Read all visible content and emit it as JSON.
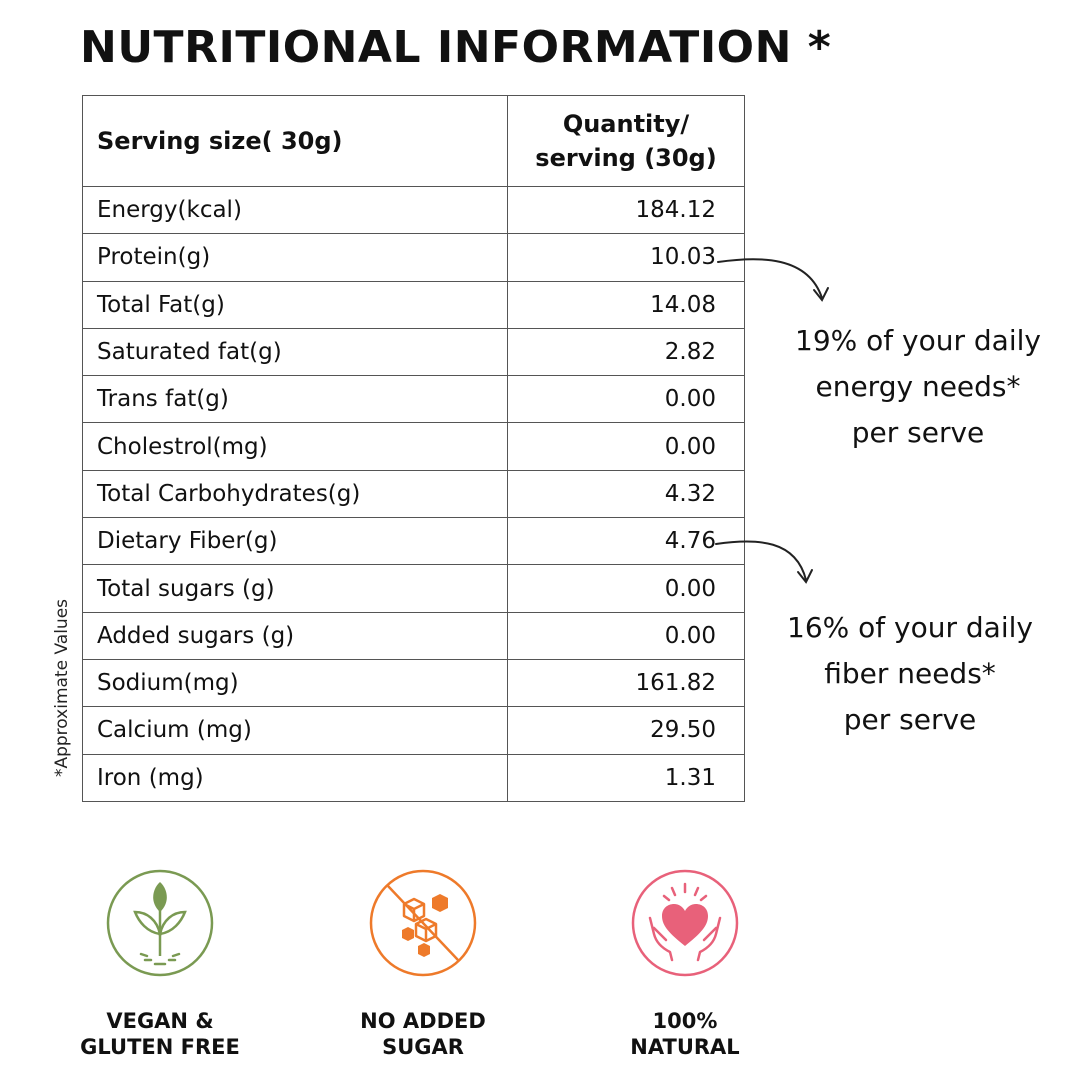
{
  "title": "NUTRITIONAL INFORMATION *",
  "side_note": "*Approximate Values",
  "table": {
    "header": {
      "name": "Serving size( 30g)",
      "qty_line1": "Quantity/",
      "qty_line2": "serving (30g)"
    },
    "rows": [
      {
        "name": "Energy(kcal)",
        "value": "184.12"
      },
      {
        "name": "Protein(g)",
        "value": "10.03"
      },
      {
        "name": "Total Fat(g)",
        "value": "14.08"
      },
      {
        "name": "Saturated fat(g)",
        "value": "2.82"
      },
      {
        "name": "Trans fat(g)",
        "value": "0.00"
      },
      {
        "name": "Cholestrol(mg)",
        "value": "0.00"
      },
      {
        "name": "Total Carbohydrates(g)",
        "value": "4.32"
      },
      {
        "name": "Dietary  Fiber(g)",
        "value": "4.76"
      },
      {
        "name": "Total sugars (g)",
        "value": "0.00"
      },
      {
        "name": "Added sugars (g)",
        "value": "0.00"
      },
      {
        "name": "Sodium(mg)",
        "value": "161.82"
      },
      {
        "name": "Calcium (mg)",
        "value": "29.50"
      },
      {
        "name": "Iron (mg)",
        "value": "1.31"
      }
    ]
  },
  "callouts": {
    "energy": {
      "line1": "19% of your daily",
      "line2": "energy needs*",
      "line3": "per serve"
    },
    "fiber": {
      "line1": "16% of your daily",
      "line2": "fiber needs*",
      "line3": "per serve"
    }
  },
  "badges": {
    "vegan": {
      "line1": "VEGAN &",
      "line2": "GLUTEN FREE",
      "icon": "plant-sprout-icon",
      "color": "#7a9a52"
    },
    "sugar": {
      "line1": "NO ADDED",
      "line2": "SUGAR",
      "icon": "no-sugar-cubes-icon",
      "color": "#ee7a2a"
    },
    "natural": {
      "line1": "100%",
      "line2": "NATURAL",
      "icon": "hands-heart-icon",
      "color": "#e8617a"
    }
  }
}
